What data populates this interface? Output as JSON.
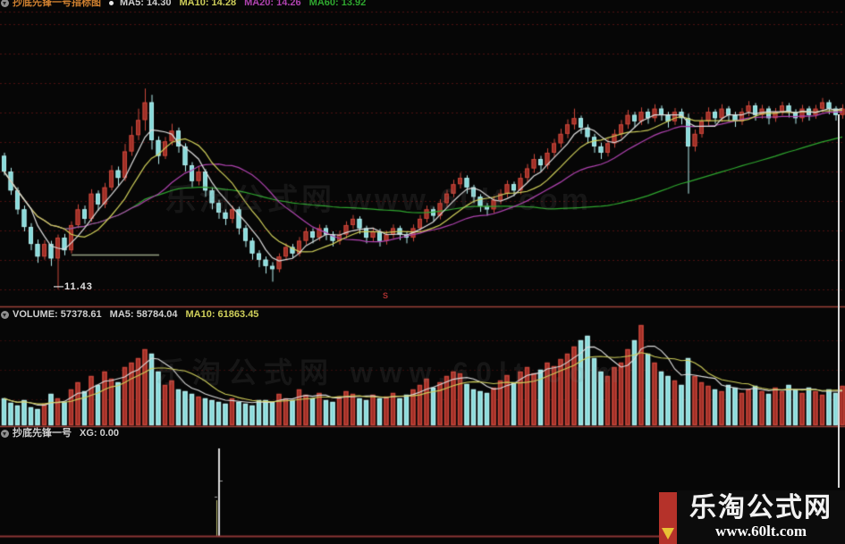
{
  "panes": {
    "main": {
      "title": "抄底先锋一号指标图",
      "ma5": "MA5: 14.30",
      "ma10": "MA10: 14.28",
      "ma20": "MA20: 14.26",
      "ma60": "MA60: 13.92"
    },
    "volume": {
      "label": "VOLUME: 57378.61",
      "ma5": "MA5: 58784.04",
      "ma10": "MA10: 61863.45"
    },
    "signal": {
      "title": "抄底先锋一号",
      "xg": "XG: 0.00"
    }
  },
  "annotations": {
    "price_label": "—11.43",
    "sell_marker": "S"
  },
  "watermark": {
    "line1": "乐淘公式网",
    "line2": "www.60lt.com",
    "ghost": "乐淘公式网 www.60lt.com"
  },
  "colors": {
    "up_fill": "#9e2f26",
    "up_stroke": "#c8463a",
    "down_fill": "#86dada",
    "down_stroke": "#b2ecec",
    "ma5": "#dcdcdc",
    "ma10": "#cfcf5a",
    "ma20": "#b043b0",
    "ma60": "#2fa82f",
    "grid": "rgba(150,28,28,0.5)",
    "grid_faint": "rgba(150,28,28,0.32)",
    "divider": "#9c4038",
    "baseline": "#8a3434",
    "signal_line": "#d8d8d8",
    "signal_sub": "#bdbd70",
    "segment": "#97a283"
  },
  "chart_data": {
    "type": "candlestick",
    "panes": [
      {
        "name": "price",
        "ylim": [
          11.2,
          15.8
        ],
        "ma_periods": [
          60,
          20,
          10,
          5
        ],
        "marked_low": 11.43,
        "candles": [
          [
            13.55,
            13.3,
            13.24,
            13.6
          ],
          [
            13.3,
            13.0,
            12.93,
            13.36
          ],
          [
            13.0,
            12.7,
            12.62,
            13.05
          ],
          [
            12.7,
            12.42,
            12.35,
            12.76
          ],
          [
            12.42,
            12.15,
            12.05,
            12.48
          ],
          [
            12.15,
            11.95,
            11.85,
            12.22
          ],
          [
            11.95,
            12.15,
            11.9,
            12.21
          ],
          [
            12.15,
            11.92,
            11.8,
            12.2
          ],
          [
            11.92,
            12.25,
            11.43,
            12.3
          ],
          [
            12.25,
            12.05,
            11.97,
            12.31
          ],
          [
            12.05,
            12.45,
            12.0,
            12.51
          ],
          [
            12.45,
            12.7,
            12.4,
            12.78
          ],
          [
            12.7,
            12.55,
            12.47,
            12.76
          ],
          [
            12.55,
            12.95,
            12.5,
            13.02
          ],
          [
            12.95,
            12.78,
            12.68,
            13.0
          ],
          [
            12.78,
            13.05,
            12.72,
            13.12
          ],
          [
            13.05,
            13.32,
            13.0,
            13.4
          ],
          [
            13.32,
            13.2,
            13.08,
            13.38
          ],
          [
            13.2,
            13.62,
            13.15,
            13.74
          ],
          [
            13.62,
            13.88,
            13.55,
            14.02
          ],
          [
            13.88,
            14.12,
            13.8,
            14.3
          ],
          [
            14.12,
            14.4,
            13.95,
            14.62
          ],
          [
            14.4,
            13.8,
            13.65,
            14.52
          ],
          [
            13.8,
            13.55,
            13.42,
            13.86
          ],
          [
            13.55,
            13.78,
            13.5,
            13.85
          ],
          [
            13.78,
            13.95,
            13.72,
            14.06
          ],
          [
            13.95,
            13.7,
            13.6,
            14.0
          ],
          [
            13.7,
            13.4,
            13.3,
            13.75
          ],
          [
            13.4,
            13.15,
            13.05,
            13.45
          ],
          [
            13.15,
            13.3,
            13.08,
            13.38
          ],
          [
            13.3,
            13.0,
            12.9,
            13.34
          ],
          [
            13.0,
            12.8,
            12.7,
            13.05
          ],
          [
            12.8,
            12.65,
            12.55,
            12.85
          ],
          [
            12.65,
            12.55,
            12.45,
            12.7
          ],
          [
            12.55,
            12.7,
            12.48,
            12.76
          ],
          [
            12.7,
            12.4,
            12.3,
            12.74
          ],
          [
            12.4,
            12.2,
            12.1,
            12.45
          ],
          [
            12.2,
            12.0,
            11.9,
            12.25
          ],
          [
            12.0,
            11.9,
            11.78,
            12.05
          ],
          [
            11.9,
            11.8,
            11.68,
            11.95
          ],
          [
            11.8,
            11.75,
            11.55,
            11.86
          ],
          [
            11.75,
            11.95,
            11.7,
            12.0
          ],
          [
            11.95,
            12.1,
            11.9,
            12.16
          ],
          [
            12.1,
            12.0,
            11.92,
            12.15
          ],
          [
            12.0,
            12.2,
            11.95,
            12.26
          ],
          [
            12.2,
            12.35,
            12.14,
            12.41
          ],
          [
            12.35,
            12.25,
            12.16,
            12.4
          ],
          [
            12.25,
            12.4,
            12.2,
            12.46
          ],
          [
            12.4,
            12.3,
            12.21,
            12.45
          ],
          [
            12.3,
            12.2,
            12.11,
            12.35
          ],
          [
            12.2,
            12.3,
            12.14,
            12.36
          ],
          [
            12.3,
            12.45,
            12.24,
            12.51
          ],
          [
            12.45,
            12.55,
            12.39,
            12.61
          ],
          [
            12.55,
            12.4,
            12.31,
            12.59
          ],
          [
            12.4,
            12.25,
            12.16,
            12.44
          ],
          [
            12.25,
            12.35,
            12.19,
            12.41
          ],
          [
            12.35,
            12.2,
            12.11,
            12.39
          ],
          [
            12.2,
            12.3,
            12.14,
            12.36
          ],
          [
            12.3,
            12.4,
            12.24,
            12.46
          ],
          [
            12.4,
            12.3,
            12.21,
            12.44
          ],
          [
            12.3,
            12.25,
            12.16,
            12.35
          ],
          [
            12.25,
            12.4,
            12.19,
            12.46
          ],
          [
            12.4,
            12.55,
            12.34,
            12.61
          ],
          [
            12.55,
            12.7,
            12.49,
            12.76
          ],
          [
            12.7,
            12.6,
            12.51,
            12.74
          ],
          [
            12.6,
            12.8,
            12.54,
            12.86
          ],
          [
            12.8,
            12.95,
            12.74,
            13.01
          ],
          [
            12.95,
            13.1,
            12.89,
            13.17
          ],
          [
            13.1,
            13.2,
            13.03,
            13.28
          ],
          [
            13.2,
            13.05,
            12.95,
            13.24
          ],
          [
            13.05,
            12.9,
            12.8,
            13.09
          ],
          [
            12.9,
            12.75,
            12.66,
            12.94
          ],
          [
            12.75,
            12.7,
            12.6,
            12.8
          ],
          [
            12.7,
            12.85,
            12.64,
            12.91
          ],
          [
            12.85,
            12.95,
            12.78,
            13.02
          ],
          [
            12.95,
            13.1,
            12.89,
            13.16
          ],
          [
            13.1,
            13.0,
            12.91,
            13.14
          ],
          [
            13.0,
            13.2,
            12.94,
            13.27
          ],
          [
            13.2,
            13.35,
            13.13,
            13.42
          ],
          [
            13.35,
            13.5,
            13.28,
            13.58
          ],
          [
            13.5,
            13.4,
            13.3,
            13.55
          ],
          [
            13.4,
            13.6,
            13.34,
            13.67
          ],
          [
            13.6,
            13.75,
            13.53,
            13.82
          ],
          [
            13.75,
            13.9,
            13.68,
            13.98
          ],
          [
            13.9,
            14.05,
            13.83,
            14.13
          ],
          [
            14.05,
            14.15,
            13.97,
            14.3
          ],
          [
            14.15,
            14.0,
            13.9,
            14.19
          ],
          [
            14.0,
            13.85,
            13.75,
            14.05
          ],
          [
            13.85,
            13.7,
            13.6,
            13.9
          ],
          [
            13.7,
            13.6,
            13.5,
            13.76
          ],
          [
            13.6,
            13.75,
            13.54,
            13.82
          ],
          [
            13.75,
            13.9,
            13.68,
            13.97
          ],
          [
            13.9,
            14.05,
            13.83,
            14.12
          ],
          [
            14.05,
            14.2,
            13.98,
            14.28
          ],
          [
            14.2,
            14.1,
            14.0,
            14.25
          ],
          [
            14.1,
            14.25,
            14.04,
            14.32
          ],
          [
            14.25,
            14.15,
            14.06,
            14.3
          ],
          [
            14.15,
            14.3,
            14.09,
            14.37
          ],
          [
            14.3,
            14.2,
            14.11,
            14.35
          ],
          [
            14.2,
            14.1,
            14.0,
            14.25
          ],
          [
            14.1,
            14.25,
            14.04,
            14.31
          ],
          [
            14.25,
            14.15,
            14.05,
            14.3
          ],
          [
            14.15,
            13.7,
            12.95,
            14.22
          ],
          [
            13.7,
            13.9,
            13.62,
            13.97
          ],
          [
            13.9,
            14.1,
            13.84,
            14.17
          ],
          [
            14.1,
            14.25,
            14.03,
            14.32
          ],
          [
            14.25,
            14.15,
            14.06,
            14.29
          ],
          [
            14.15,
            14.3,
            14.09,
            14.37
          ],
          [
            14.3,
            14.2,
            14.1,
            14.34
          ],
          [
            14.2,
            14.1,
            14.01,
            14.25
          ],
          [
            14.1,
            14.25,
            14.04,
            14.31
          ],
          [
            14.25,
            14.35,
            14.18,
            14.42
          ],
          [
            14.35,
            14.2,
            14.11,
            14.39
          ],
          [
            14.2,
            14.3,
            14.14,
            14.36
          ],
          [
            14.3,
            14.15,
            14.05,
            14.34
          ],
          [
            14.15,
            14.25,
            14.09,
            14.31
          ],
          [
            14.25,
            14.35,
            14.19,
            14.41
          ],
          [
            14.35,
            14.25,
            14.16,
            14.39
          ],
          [
            14.25,
            14.15,
            14.06,
            14.29
          ],
          [
            14.15,
            14.3,
            14.09,
            14.36
          ],
          [
            14.3,
            14.2,
            14.11,
            14.34
          ],
          [
            14.2,
            14.3,
            14.14,
            14.36
          ],
          [
            14.3,
            14.4,
            14.24,
            14.47
          ],
          [
            14.4,
            14.3,
            14.21,
            14.44
          ],
          [
            14.3,
            14.2,
            14.11,
            14.34
          ],
          [
            14.2,
            14.3,
            14.14,
            14.37
          ]
        ]
      },
      {
        "name": "volume",
        "header_values": {
          "volume": 57378.61,
          "ma5": 58784.04,
          "ma10": 61863.45
        },
        "ma_periods": [
          5,
          10
        ],
        "values": [
          30,
          25,
          22,
          28,
          20,
          18,
          24,
          35,
          30,
          26,
          40,
          48,
          38,
          55,
          45,
          60,
          52,
          48,
          65,
          70,
          75,
          85,
          80,
          60,
          45,
          50,
          40,
          38,
          35,
          32,
          30,
          28,
          26,
          24,
          30,
          26,
          24,
          22,
          28,
          28,
          26,
          35,
          30,
          28,
          40,
          34,
          30,
          36,
          28,
          26,
          32,
          38,
          35,
          30,
          28,
          34,
          30,
          32,
          36,
          30,
          34,
          40,
          45,
          52,
          42,
          48,
          55,
          60,
          58,
          46,
          40,
          38,
          36,
          42,
          50,
          56,
          48,
          60,
          65,
          58,
          62,
          70,
          66,
          74,
          80,
          88,
          95,
          100,
          75,
          60,
          55,
          65,
          70,
          85,
          95,
          112,
          80,
          70,
          60,
          55,
          50,
          45,
          75,
          55,
          48,
          44,
          40,
          38,
          45,
          42,
          36,
          40,
          44,
          38,
          35,
          42,
          38,
          45,
          40,
          36,
          42,
          38,
          34,
          40,
          36,
          44
        ]
      },
      {
        "name": "signal",
        "label": "抄底先锋一号",
        "xg_current": 0.0,
        "spike_index": 32,
        "spike_value": 1
      }
    ]
  }
}
